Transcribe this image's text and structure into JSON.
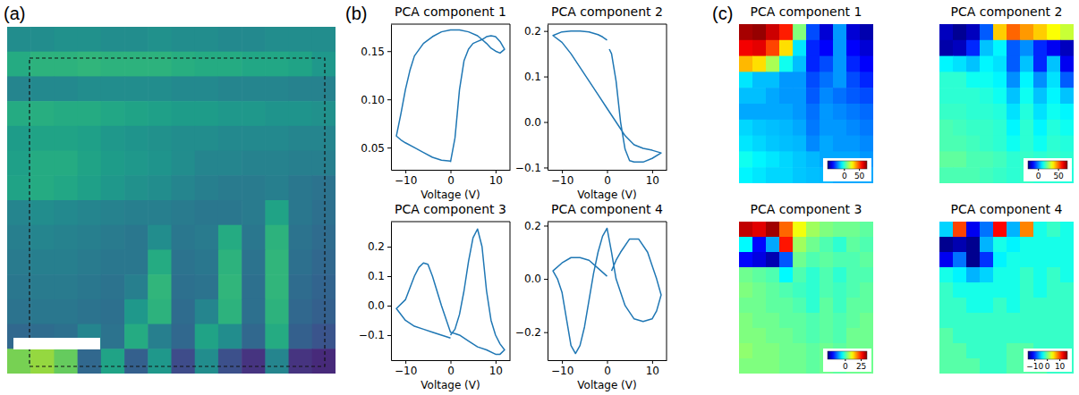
{
  "chart_data": [
    {
      "type": "heatmap",
      "panel": "(a)",
      "tick_labels": false,
      "cells": [
        [
          0.52,
          0.52,
          0.53,
          0.53,
          0.52,
          0.52,
          0.53,
          0.52,
          0.52,
          0.51,
          0.51,
          0.52,
          0.52,
          0.52
        ],
        [
          0.6,
          0.62,
          0.62,
          0.63,
          0.62,
          0.62,
          0.62,
          0.61,
          0.6,
          0.6,
          0.59,
          0.59,
          0.58,
          0.55
        ],
        [
          0.5,
          0.51,
          0.51,
          0.52,
          0.52,
          0.52,
          0.52,
          0.51,
          0.51,
          0.5,
          0.5,
          0.5,
          0.49,
          0.49
        ],
        [
          0.6,
          0.61,
          0.6,
          0.6,
          0.59,
          0.58,
          0.57,
          0.56,
          0.56,
          0.55,
          0.55,
          0.54,
          0.54,
          0.53
        ],
        [
          0.56,
          0.58,
          0.58,
          0.57,
          0.55,
          0.54,
          0.53,
          0.52,
          0.52,
          0.51,
          0.51,
          0.51,
          0.5,
          0.5
        ],
        [
          0.57,
          0.6,
          0.6,
          0.58,
          0.56,
          0.55,
          0.54,
          0.52,
          0.5,
          0.5,
          0.49,
          0.49,
          0.48,
          0.48
        ],
        [
          0.58,
          0.6,
          0.59,
          0.57,
          0.55,
          0.53,
          0.52,
          0.5,
          0.48,
          0.47,
          0.47,
          0.48,
          0.46,
          0.45
        ],
        [
          0.5,
          0.52,
          0.51,
          0.5,
          0.49,
          0.48,
          0.48,
          0.47,
          0.46,
          0.46,
          0.47,
          0.58,
          0.46,
          0.44
        ],
        [
          0.48,
          0.5,
          0.49,
          0.48,
          0.47,
          0.46,
          0.52,
          0.46,
          0.47,
          0.6,
          0.46,
          0.62,
          0.45,
          0.43
        ],
        [
          0.47,
          0.48,
          0.48,
          0.47,
          0.46,
          0.46,
          0.6,
          0.45,
          0.46,
          0.62,
          0.45,
          0.63,
          0.44,
          0.42
        ],
        [
          0.46,
          0.47,
          0.47,
          0.46,
          0.45,
          0.48,
          0.63,
          0.44,
          0.45,
          0.63,
          0.44,
          0.63,
          0.43,
          0.41
        ],
        [
          0.45,
          0.46,
          0.46,
          0.45,
          0.44,
          0.55,
          0.62,
          0.43,
          0.5,
          0.62,
          0.44,
          0.62,
          0.42,
          0.4
        ],
        [
          0.42,
          0.43,
          0.44,
          0.5,
          0.45,
          0.6,
          0.48,
          0.42,
          0.58,
          0.52,
          0.42,
          0.6,
          0.4,
          0.37
        ],
        [
          0.72,
          0.75,
          0.7,
          0.42,
          0.58,
          0.4,
          0.55,
          0.35,
          0.52,
          0.36,
          0.3,
          0.5,
          0.3,
          0.28
        ]
      ]
    },
    {
      "type": "line",
      "panel": "(b)",
      "title": "PCA component 1",
      "xlabel": "Voltage (V)",
      "color": "#1f77b4",
      "x": [
        0,
        1,
        2,
        3,
        4,
        5,
        6,
        7,
        8,
        9,
        10,
        11,
        12,
        11,
        10,
        9,
        8,
        7,
        6,
        4,
        2,
        0,
        -2,
        -4,
        -6,
        -8,
        -9,
        -10,
        -11,
        -12,
        -11,
        -10,
        -8,
        -6,
        -4,
        -2,
        0
      ],
      "values": [
        0.035,
        0.06,
        0.11,
        0.14,
        0.152,
        0.158,
        0.16,
        0.162,
        0.165,
        0.166,
        0.165,
        0.16,
        0.152,
        0.148,
        0.15,
        0.153,
        0.158,
        0.162,
        0.166,
        0.17,
        0.172,
        0.172,
        0.17,
        0.165,
        0.158,
        0.145,
        0.13,
        0.11,
        0.085,
        0.062,
        0.058,
        0.055,
        0.05,
        0.045,
        0.04,
        0.037,
        0.036
      ],
      "xlim": [
        -13.2,
        13.2
      ],
      "xticks": [
        {
          "value": -10,
          "label": "−10"
        },
        0,
        10
      ],
      "ylim": [
        0.027,
        0.178
      ],
      "yticks": [
        0.05,
        {
          "value": 0.1,
          "label": "0.10"
        },
        0.15
      ]
    },
    {
      "type": "line",
      "title": "PCA component 2",
      "xlabel": "Voltage (V)",
      "color": "#1f77b4",
      "x": [
        0.5,
        1,
        2,
        3,
        4,
        5,
        6,
        8,
        10,
        12,
        10,
        8,
        6,
        4,
        2,
        0,
        -2,
        -4,
        -6,
        -8,
        -10,
        -12,
        -10,
        -8,
        -6,
        -4,
        -2,
        -1,
        0
      ],
      "values": [
        0.16,
        0.15,
        0.09,
        0.0,
        -0.06,
        -0.085,
        -0.088,
        -0.088,
        -0.08,
        -0.068,
        -0.062,
        -0.058,
        -0.05,
        -0.03,
        0.0,
        0.03,
        0.06,
        0.09,
        0.12,
        0.15,
        0.175,
        0.19,
        0.198,
        0.2,
        0.2,
        0.198,
        0.192,
        0.187,
        0.18
      ],
      "xlim": [
        -13.2,
        13.2
      ],
      "xticks": [
        {
          "value": -10,
          "label": "−10"
        },
        0,
        10
      ],
      "ylim": [
        -0.105,
        0.215
      ],
      "yticks": [
        {
          "value": -0.1,
          "label": "−0.1"
        },
        {
          "value": 0,
          "label": "0.0"
        },
        0.1,
        0.2
      ]
    },
    {
      "type": "line",
      "title": "PCA component 3",
      "xlabel": "Voltage (V)",
      "color": "#1f77b4",
      "x": [
        0,
        1,
        2,
        3,
        4,
        5,
        6,
        7,
        8,
        9,
        10,
        11,
        12,
        11,
        10,
        8,
        6,
        4,
        2,
        0,
        -2,
        -4,
        -5,
        -6,
        -7,
        -8,
        -10,
        -12,
        -10,
        -8,
        -6,
        -4,
        -2,
        0
      ],
      "values": [
        -0.1,
        -0.08,
        -0.03,
        0.05,
        0.15,
        0.23,
        0.26,
        0.2,
        0.05,
        -0.05,
        -0.1,
        -0.13,
        -0.15,
        -0.165,
        -0.165,
        -0.15,
        -0.14,
        -0.12,
        -0.1,
        -0.09,
        0.0,
        0.1,
        0.14,
        0.145,
        0.13,
        0.1,
        0.02,
        -0.01,
        -0.05,
        -0.07,
        -0.08,
        -0.09,
        -0.1,
        -0.11
      ],
      "xlim": [
        -13.2,
        13.2
      ],
      "xticks": [
        {
          "value": -10,
          "label": "−10"
        },
        0,
        10
      ],
      "ylim": [
        -0.185,
        0.285
      ],
      "yticks": [
        {
          "value": -0.1,
          "label": "−0.1"
        },
        {
          "value": 0,
          "label": "0.0"
        },
        0.1,
        0.2
      ]
    },
    {
      "type": "line",
      "title": "PCA component 4",
      "xlabel": "Voltage (V)",
      "color": "#1f77b4",
      "x": [
        1,
        2,
        3,
        5,
        7,
        9,
        10,
        11,
        12,
        11,
        10,
        8,
        6,
        4,
        2,
        1,
        0,
        -1,
        -2,
        -3,
        -4,
        -5,
        -6,
        -7,
        -8,
        -9,
        -10,
        -11,
        -12,
        -10,
        -8,
        -6,
        -4,
        -2,
        0
      ],
      "values": [
        0.03,
        0.07,
        0.1,
        0.15,
        0.15,
        0.1,
        0.05,
        0.0,
        -0.06,
        -0.12,
        -0.15,
        -0.16,
        -0.15,
        -0.1,
        0.0,
        0.1,
        0.19,
        0.16,
        0.1,
        0.02,
        -0.08,
        -0.18,
        -0.25,
        -0.28,
        -0.25,
        -0.15,
        -0.05,
        0.0,
        0.03,
        0.06,
        0.08,
        0.08,
        0.07,
        0.04,
        0.01
      ],
      "xlim": [
        -13.2,
        13.2
      ],
      "xticks": [
        {
          "value": -10,
          "label": "−10"
        },
        0,
        10
      ],
      "ylim": [
        -0.305,
        0.215
      ],
      "yticks": [
        {
          "value": -0.2,
          "label": "−0.2"
        },
        {
          "value": 0,
          "label": "0.0"
        },
        0.2
      ]
    },
    {
      "type": "heatmap",
      "panel": "(c)",
      "title": "PCA component 1",
      "tick_labels": false,
      "color_range": [
        -56,
        75
      ],
      "color_ticks": [
        0,
        50
      ],
      "cells": [
        [
          70,
          72,
          65,
          55,
          10,
          -30,
          -45,
          -20,
          -45,
          -50
        ],
        [
          60,
          62,
          50,
          30,
          -10,
          -35,
          -40,
          -20,
          -40,
          -45
        ],
        [
          35,
          30,
          15,
          -5,
          -15,
          -35,
          -30,
          -20,
          -35,
          -40
        ],
        [
          -10,
          -15,
          -15,
          -20,
          -20,
          -30,
          -25,
          -20,
          -30,
          -35
        ],
        [
          -15,
          -15,
          -18,
          -20,
          -20,
          -28,
          -22,
          -25,
          -28,
          -30
        ],
        [
          -18,
          -18,
          -18,
          -18,
          -20,
          -25,
          -20,
          -22,
          -24,
          -26
        ],
        [
          -12,
          -14,
          -15,
          -16,
          -18,
          -24,
          -20,
          -20,
          -22,
          -24
        ],
        [
          -10,
          -12,
          -14,
          -15,
          -16,
          -22,
          -18,
          -20,
          -20,
          -22
        ],
        [
          -5,
          -8,
          -10,
          -12,
          -14,
          -16,
          -18,
          -18,
          -18,
          -20
        ],
        [
          -8,
          -10,
          -12,
          -12,
          -14,
          -15,
          -16,
          -18,
          -18,
          -18
        ]
      ]
    },
    {
      "type": "heatmap",
      "title": "PCA component 2",
      "tick_labels": false,
      "color_range": [
        -26,
        72
      ],
      "color_ticks": [
        0,
        50
      ],
      "cells": [
        [
          -20,
          -24,
          -20,
          -5,
          40,
          50,
          45,
          40,
          35,
          30
        ],
        [
          -22,
          -20,
          -10,
          5,
          10,
          -5,
          0,
          -10,
          -15,
          -20
        ],
        [
          10,
          8,
          5,
          10,
          8,
          -5,
          5,
          -10,
          5,
          -15
        ],
        [
          15,
          15,
          12,
          12,
          10,
          0,
          10,
          0,
          8,
          -5
        ],
        [
          15,
          15,
          15,
          14,
          12,
          5,
          12,
          5,
          10,
          5
        ],
        [
          16,
          16,
          15,
          15,
          14,
          8,
          14,
          8,
          12,
          10
        ],
        [
          18,
          17,
          16,
          16,
          15,
          10,
          15,
          10,
          14,
          12
        ],
        [
          18,
          18,
          17,
          16,
          15,
          12,
          15,
          12,
          15,
          14
        ],
        [
          20,
          20,
          18,
          18,
          17,
          15,
          16,
          15,
          16,
          15
        ],
        [
          18,
          18,
          18,
          17,
          16,
          15,
          16,
          15,
          15,
          14
        ]
      ]
    },
    {
      "type": "heatmap",
      "title": "PCA component 3",
      "tick_labels": false,
      "color_range": [
        -28,
        34
      ],
      "color_ticks": [
        0,
        25
      ],
      "cells": [
        [
          30,
          28,
          32,
          20,
          10,
          5,
          3,
          2,
          2,
          1
        ],
        [
          -5,
          -20,
          -10,
          25,
          5,
          2,
          0,
          -2,
          1,
          0
        ],
        [
          -20,
          -22,
          -25,
          -15,
          2,
          0,
          1,
          0,
          0,
          1
        ],
        [
          2,
          1,
          0,
          -5,
          0,
          -2,
          0,
          -2,
          0,
          0
        ],
        [
          3,
          2,
          1,
          0,
          -1,
          -2,
          0,
          -1,
          0,
          1
        ],
        [
          2,
          2,
          1,
          1,
          0,
          -2,
          1,
          -1,
          1,
          1
        ],
        [
          3,
          2,
          2,
          1,
          1,
          0,
          1,
          0,
          1,
          2
        ],
        [
          3,
          3,
          2,
          2,
          1,
          0,
          1,
          0,
          2,
          2
        ],
        [
          4,
          3,
          3,
          2,
          2,
          1,
          2,
          1,
          2,
          2
        ],
        [
          3,
          3,
          3,
          2,
          2,
          1,
          2,
          1,
          2,
          2
        ]
      ]
    },
    {
      "type": "heatmap",
      "title": "PCA component 4",
      "tick_labels": false,
      "color_range": [
        -15.5,
        16
      ],
      "color_ticks": [
        {
          "value": -10,
          "label": "−10"
        },
        0,
        10
      ],
      "cells": [
        [
          -5,
          10,
          -12,
          -8,
          12,
          -6,
          8,
          -3,
          -2,
          -3
        ],
        [
          -15,
          -14,
          -15,
          -6,
          -3,
          -4,
          -3,
          -3,
          -3,
          -3
        ],
        [
          -12,
          -8,
          -15,
          -10,
          -4,
          -3,
          -3,
          -3,
          -3,
          -3
        ],
        [
          -3,
          -4,
          -6,
          -5,
          -3,
          -3,
          -2,
          -3,
          -2,
          -3
        ],
        [
          -2,
          -3,
          -3,
          -3,
          -3,
          -3,
          -2,
          -3,
          -2,
          -2
        ],
        [
          -2,
          -2,
          -3,
          -3,
          -2,
          -3,
          -2,
          -2,
          -2,
          -2
        ],
        [
          -2,
          -2,
          -2,
          -2,
          -2,
          -2,
          -2,
          -2,
          -2,
          -2
        ],
        [
          -1,
          -2,
          -2,
          -2,
          -2,
          -2,
          -2,
          -2,
          -2,
          -2
        ],
        [
          -1,
          -1,
          -2,
          -2,
          -2,
          -1,
          -1,
          -2,
          -2,
          -2
        ],
        [
          -1,
          -1,
          -1,
          -2,
          -2,
          -1,
          -1,
          -1,
          -2,
          -2
        ]
      ]
    }
  ]
}
